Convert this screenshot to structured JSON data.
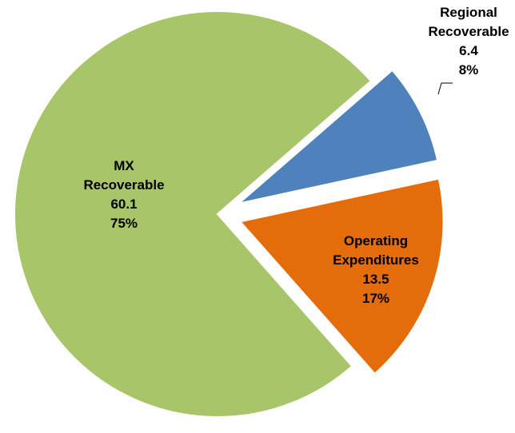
{
  "chart_data": {
    "type": "pie",
    "categories": [
      "Regional Recoverable",
      "Operating Expenditures",
      "MX Recoverable"
    ],
    "values": [
      6.4,
      13.5,
      60.1
    ],
    "percent_labels": [
      "8%",
      "17%",
      "75%"
    ],
    "colors": [
      "#4f81bd",
      "#e46c0a",
      "#a9c56a"
    ]
  }
}
